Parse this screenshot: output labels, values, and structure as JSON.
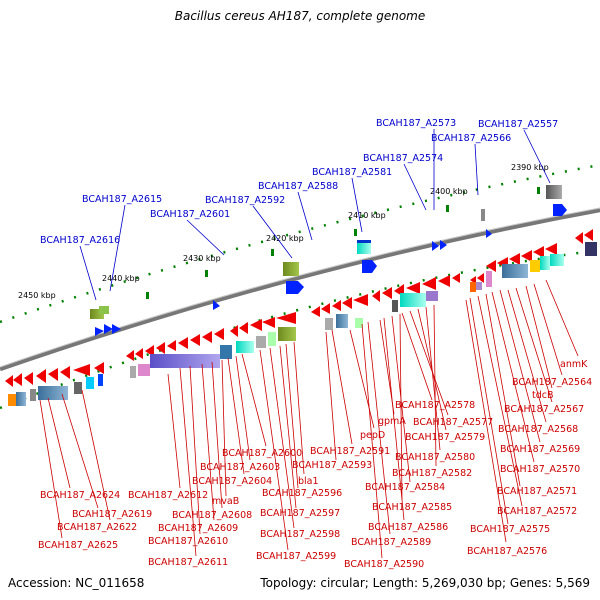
{
  "title": "Bacillus cereus AH187, complete genome",
  "accession": "Accession: NC_011658",
  "summary": "Topology: circular; Length: 5,269,030 bp; Genes: 5,569",
  "colors": {
    "top_labels": "#0000cc",
    "bottom_labels": "#cc0000",
    "backbone": "#888888",
    "ticks": "#008000"
  },
  "scale_ticks": [
    {
      "label": "2450 kbp"
    },
    {
      "label": "2440 kbp"
    },
    {
      "label": "2430 kbp"
    },
    {
      "label": "2420 kbp"
    },
    {
      "label": "2410 kbp"
    },
    {
      "label": "2400 kbp"
    },
    {
      "label": "2390 kbp"
    }
  ],
  "top_labels": [
    {
      "text": "BCAH187_A2573"
    },
    {
      "text": "BCAH187_A2557"
    },
    {
      "text": "BCAH187_A2566"
    },
    {
      "text": "BCAH187_A2574"
    },
    {
      "text": "BCAH187_A2581"
    },
    {
      "text": "BCAH187_A2588"
    },
    {
      "text": "BCAH187_A2615"
    },
    {
      "text": "BCAH187_A2592"
    },
    {
      "text": "BCAH187_A2601"
    },
    {
      "text": "BCAH187_A2616"
    }
  ],
  "bottom_labels": [
    {
      "text": "anmK"
    },
    {
      "text": "BCAH187_A2564"
    },
    {
      "text": "tdcB"
    },
    {
      "text": "BCAH187_A2578"
    },
    {
      "text": "BCAH187_A2567"
    },
    {
      "text": "BCAH187_A2577"
    },
    {
      "text": "pepD"
    },
    {
      "text": "gpmA"
    },
    {
      "text": "BCAH187_A2568"
    },
    {
      "text": "BCAH187_A2579"
    },
    {
      "text": "BCAH187_A2600"
    },
    {
      "text": "BCAH187_A2591"
    },
    {
      "text": "BCAH187_A2569"
    },
    {
      "text": "BCAH187_A2580"
    },
    {
      "text": "BCAH187_A2603"
    },
    {
      "text": "BCAH187_A2593"
    },
    {
      "text": "BCAH187_A2570"
    },
    {
      "text": "BCAH187_A2604"
    },
    {
      "text": "bla1"
    },
    {
      "text": "BCAH187_A2582"
    },
    {
      "text": "BCAH187_A2584"
    },
    {
      "text": "BCAH187_A2571"
    },
    {
      "text": "BCAH187_A2624"
    },
    {
      "text": "BCAH187_A2612"
    },
    {
      "text": "BCAH187_A2596"
    },
    {
      "text": "mvaB"
    },
    {
      "text": "BCAH187_A2585"
    },
    {
      "text": "BCAH187_A2572"
    },
    {
      "text": "BCAH187_A2619"
    },
    {
      "text": "BCAH187_A2608"
    },
    {
      "text": "BCAH187_A2597"
    },
    {
      "text": "BCAH187_A2622"
    },
    {
      "text": "BCAH187_A2609"
    },
    {
      "text": "BCAH187_A2586"
    },
    {
      "text": "BCAH187_A2575"
    },
    {
      "text": "BCAH187_A2598"
    },
    {
      "text": "BCAH187_A2589"
    },
    {
      "text": "BCAH187_A2625"
    },
    {
      "text": "BCAH187_A2610"
    },
    {
      "text": "BCAH187_A2576"
    },
    {
      "text": "BCAH187_A2599"
    },
    {
      "text": "BCAH187_A2611"
    },
    {
      "text": "BCAH187_A2590"
    }
  ]
}
